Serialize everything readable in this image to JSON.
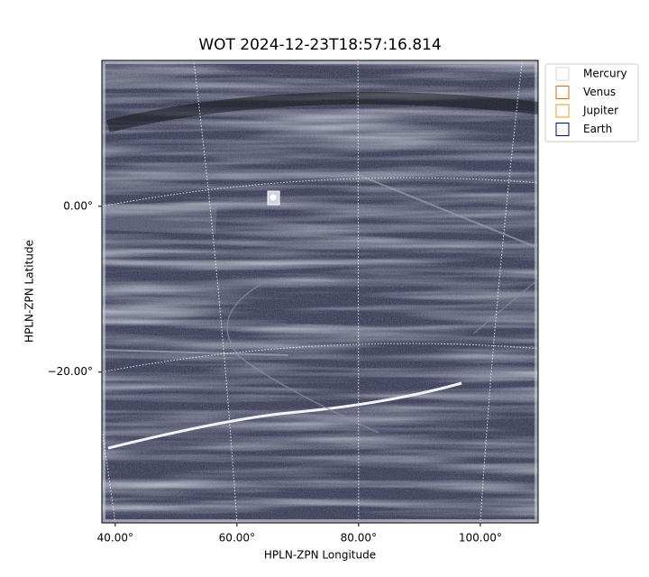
{
  "chart_data": {
    "type": "image",
    "title": "WOT 2024-12-23T18:57:16.814",
    "xlabel": "HPLN-ZPN Longitude",
    "ylabel": "HPLN-ZPN Latitude",
    "xlim": [
      37.8,
      109.5
    ],
    "ylim": [
      -38.2,
      17.6
    ],
    "xticks": [
      {
        "value": 40,
        "label": "40.00°"
      },
      {
        "value": 60,
        "label": "60.00°"
      },
      {
        "value": 80,
        "label": "80.00°"
      },
      {
        "value": 100,
        "label": "100.00°"
      }
    ],
    "yticks": [
      {
        "value": 0,
        "label": "0.00°"
      },
      {
        "value": -20,
        "label": "−20.00°"
      }
    ],
    "grid": true,
    "legend": "upper right outside",
    "series": [
      {
        "name": "Mercury",
        "color": "#d3d3d3"
      },
      {
        "name": "Venus",
        "color": "#d2691e"
      },
      {
        "name": "Jupiter",
        "color": "#daa520"
      },
      {
        "name": "Earth",
        "color": "#000080"
      }
    ]
  }
}
